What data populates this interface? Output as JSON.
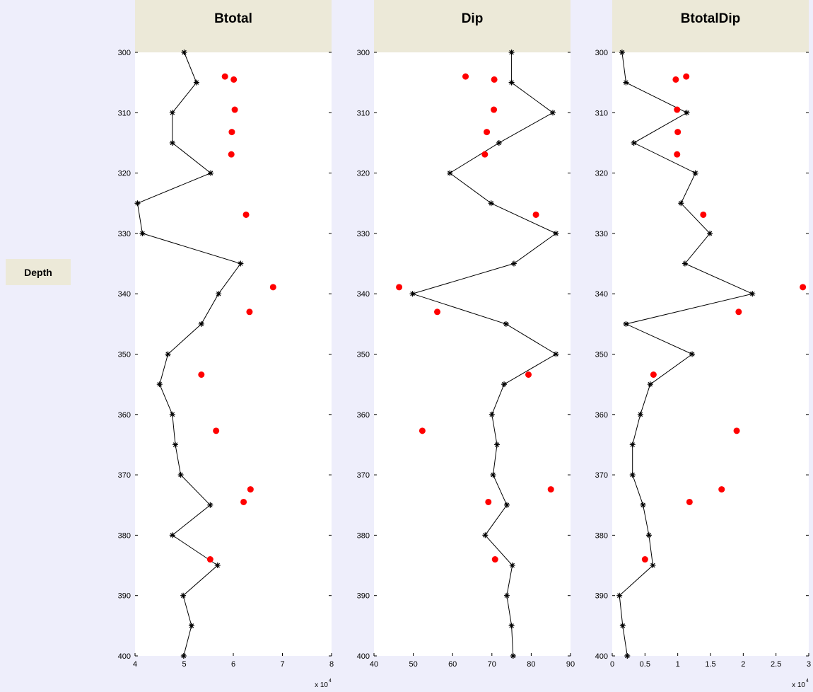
{
  "left_label": "Depth",
  "chart_data": [
    {
      "type": "scatter",
      "title": "Btotal",
      "xlim": [
        40000,
        80000
      ],
      "ylim": [
        300,
        400
      ],
      "xticks": [
        40000,
        50000,
        60000,
        70000,
        80000
      ],
      "xtick_labels": [
        "4",
        "5",
        "6",
        "7",
        "8"
      ],
      "x_multiplier": "x 10",
      "x_multiplier_exp": "4",
      "yticks": [
        300,
        310,
        320,
        330,
        340,
        350,
        360,
        370,
        380,
        390,
        400
      ],
      "ytick_labels": [
        "300",
        "310",
        "320",
        "330",
        "340",
        "350",
        "360",
        "370",
        "380",
        "390",
        "400"
      ],
      "line_series": {
        "color": "#000000",
        "marker": "*",
        "points": [
          [
            50000,
            300
          ],
          [
            52500,
            305
          ],
          [
            47600,
            310
          ],
          [
            47600,
            315
          ],
          [
            55400,
            320
          ],
          [
            40500,
            325
          ],
          [
            41500,
            330
          ],
          [
            61500,
            335
          ],
          [
            57000,
            340
          ],
          [
            53500,
            345
          ],
          [
            46700,
            350
          ],
          [
            45000,
            355
          ],
          [
            47600,
            360
          ],
          [
            48200,
            365
          ],
          [
            49300,
            370
          ],
          [
            55300,
            375
          ],
          [
            47600,
            380
          ],
          [
            56800,
            385
          ],
          [
            49800,
            390
          ],
          [
            51500,
            395
          ],
          [
            49900,
            400
          ]
        ]
      },
      "marker_series": {
        "color": "#ff0000",
        "marker": "o",
        "points": [
          [
            58300,
            304
          ],
          [
            60100,
            304.5
          ],
          [
            60300,
            309.5
          ],
          [
            59700,
            313.2
          ],
          [
            59600,
            316.9
          ],
          [
            62600,
            326.9
          ],
          [
            68100,
            338.9
          ],
          [
            63300,
            343
          ],
          [
            53500,
            353.4
          ],
          [
            56500,
            362.7
          ],
          [
            63500,
            372.4
          ],
          [
            62100,
            374.5
          ],
          [
            55300,
            384
          ]
        ]
      }
    },
    {
      "type": "scatter",
      "title": "Dip",
      "xlim": [
        40,
        90
      ],
      "ylim": [
        300,
        400
      ],
      "xticks": [
        40,
        50,
        60,
        70,
        80,
        90
      ],
      "xtick_labels": [
        "40",
        "50",
        "60",
        "70",
        "80",
        "90"
      ],
      "yticks": [
        300,
        310,
        320,
        330,
        340,
        350,
        360,
        370,
        380,
        390,
        400
      ],
      "ytick_labels": [
        "300",
        "310",
        "320",
        "330",
        "340",
        "350",
        "360",
        "370",
        "380",
        "390",
        "400"
      ],
      "line_series": {
        "color": "#000000",
        "marker": "*",
        "points": [
          [
            75,
            300
          ],
          [
            75,
            305
          ],
          [
            85.5,
            310
          ],
          [
            71.8,
            315
          ],
          [
            59.3,
            320
          ],
          [
            69.8,
            325
          ],
          [
            86.3,
            330
          ],
          [
            75.6,
            335
          ],
          [
            49.8,
            340
          ],
          [
            73.6,
            345
          ],
          [
            86.3,
            350
          ],
          [
            73.1,
            355
          ],
          [
            70,
            360
          ],
          [
            71.3,
            365
          ],
          [
            70.3,
            370
          ],
          [
            73.8,
            375
          ],
          [
            68.3,
            380
          ],
          [
            75.2,
            385
          ],
          [
            73.8,
            390
          ],
          [
            75,
            395
          ],
          [
            75.4,
            400
          ]
        ]
      },
      "marker_series": {
        "color": "#ff0000",
        "marker": "o",
        "points": [
          [
            63.3,
            304
          ],
          [
            70.6,
            304.5
          ],
          [
            70.5,
            309.5
          ],
          [
            68.7,
            313.2
          ],
          [
            68.2,
            316.9
          ],
          [
            81.2,
            326.9
          ],
          [
            46.4,
            338.9
          ],
          [
            56.1,
            343
          ],
          [
            79.3,
            353.4
          ],
          [
            52.3,
            362.7
          ],
          [
            85,
            372.4
          ],
          [
            69.1,
            374.5
          ],
          [
            70.8,
            384
          ]
        ]
      }
    },
    {
      "type": "scatter",
      "title": "BtotalDip",
      "xlim": [
        0,
        30000
      ],
      "ylim": [
        300,
        400
      ],
      "xticks": [
        0,
        5000,
        10000,
        15000,
        20000,
        25000,
        30000
      ],
      "xtick_labels": [
        "0",
        "0.5",
        "1",
        "1.5",
        "2",
        "2.5",
        "3"
      ],
      "x_multiplier": "x 10",
      "x_multiplier_exp": "4",
      "yticks": [
        300,
        310,
        320,
        330,
        340,
        350,
        360,
        370,
        380,
        390,
        400
      ],
      "ytick_labels": [
        "300",
        "310",
        "320",
        "330",
        "340",
        "350",
        "360",
        "370",
        "380",
        "390",
        "400"
      ],
      "line_series": {
        "color": "#000000",
        "marker": "*",
        "points": [
          [
            1500,
            300
          ],
          [
            2100,
            305
          ],
          [
            11400,
            310
          ],
          [
            3300,
            315
          ],
          [
            12700,
            320
          ],
          [
            10500,
            325
          ],
          [
            14900,
            330
          ],
          [
            11100,
            335
          ],
          [
            21400,
            340
          ],
          [
            2100,
            345
          ],
          [
            12200,
            350
          ],
          [
            5800,
            355
          ],
          [
            4300,
            360
          ],
          [
            3100,
            365
          ],
          [
            3100,
            370
          ],
          [
            4700,
            375
          ],
          [
            5600,
            380
          ],
          [
            6200,
            385
          ],
          [
            1100,
            390
          ],
          [
            1600,
            395
          ],
          [
            2300,
            400
          ]
        ]
      },
      "marker_series": {
        "color": "#ff0000",
        "marker": "o",
        "points": [
          [
            11300,
            304
          ],
          [
            9700,
            304.5
          ],
          [
            9900,
            309.5
          ],
          [
            10000,
            313.2
          ],
          [
            9900,
            316.9
          ],
          [
            13900,
            326.9
          ],
          [
            29100,
            338.9
          ],
          [
            19300,
            343
          ],
          [
            6300,
            353.4
          ],
          [
            19000,
            362.7
          ],
          [
            16700,
            372.4
          ],
          [
            11800,
            374.5
          ],
          [
            5000,
            384
          ]
        ]
      }
    }
  ]
}
